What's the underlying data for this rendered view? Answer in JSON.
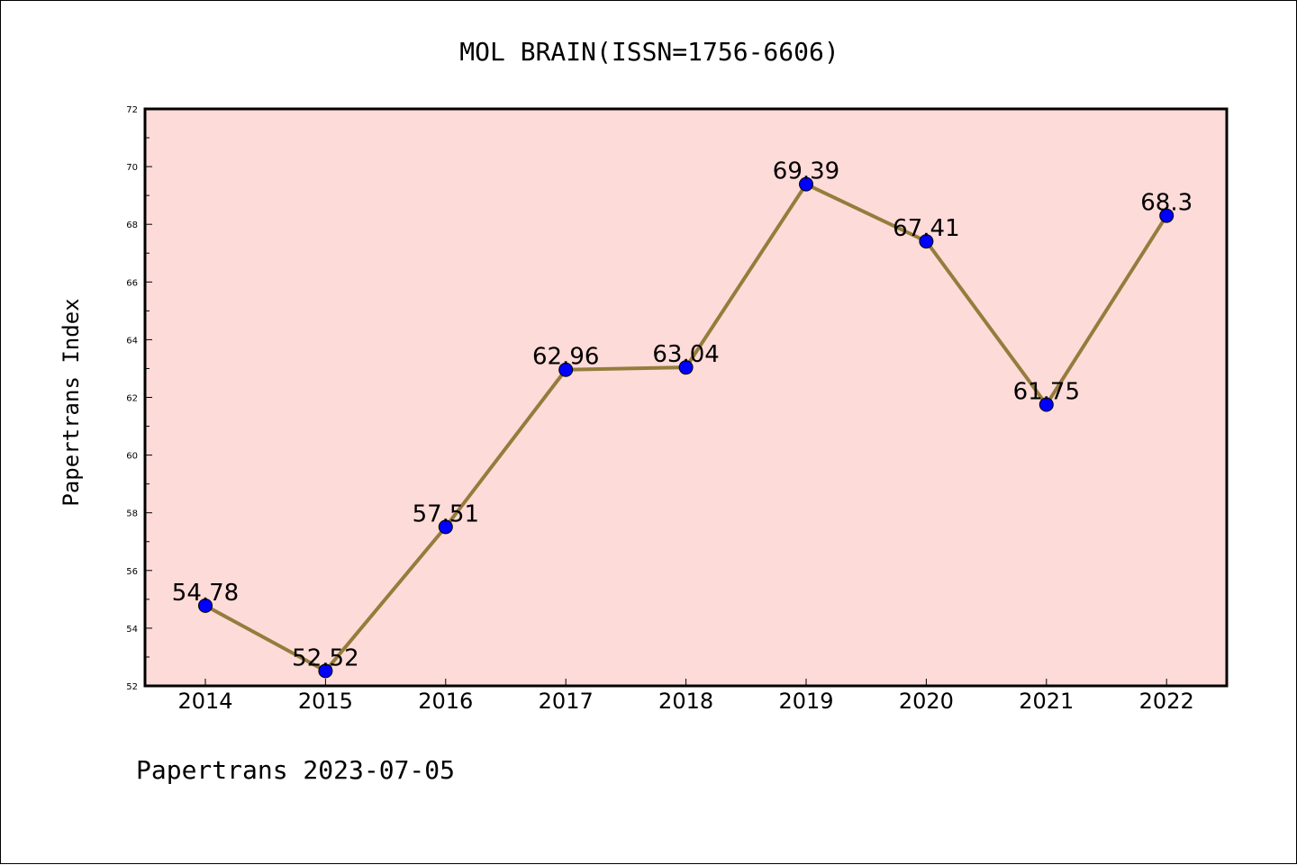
{
  "chart_data": {
    "type": "line",
    "title": "MOL BRAIN(ISSN=1756-6606)",
    "xlabel": "",
    "ylabel": "Papertrans Index",
    "categories": [
      "2014",
      "2015",
      "2016",
      "2017",
      "2018",
      "2019",
      "2020",
      "2021",
      "2022"
    ],
    "series": [
      {
        "values": [
          54.78,
          52.52,
          57.51,
          62.96,
          63.04,
          69.39,
          67.41,
          61.75,
          68.3
        ],
        "labels": [
          "54.78",
          "52.52",
          "57.51",
          "62.96",
          "63.04",
          "69.39",
          "67.41",
          "61.75",
          "68.3"
        ],
        "line_color": "#967c3c",
        "marker_color": "#0000ff"
      }
    ],
    "ylim": [
      52,
      72
    ],
    "y_ticks": [
      "52",
      "54",
      "56",
      "58",
      "60",
      "62",
      "64",
      "66",
      "68",
      "70",
      "72"
    ],
    "grid": false,
    "legend": "none",
    "plot_background": "#fddbd9"
  },
  "footer": {
    "text": "Papertrans 2023-07-05"
  }
}
